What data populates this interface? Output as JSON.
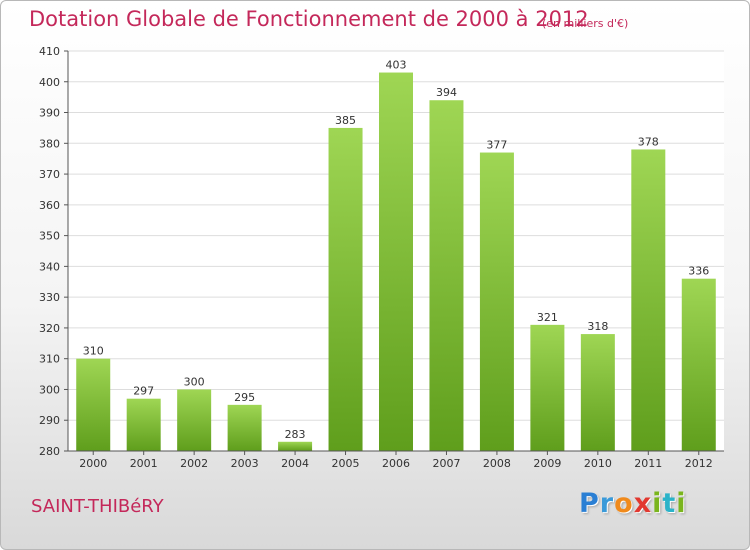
{
  "header": {
    "title": "Dotation Globale de Fonctionnement de 2000 à 2012",
    "unit": "(en milliers d'€)"
  },
  "footer": {
    "commune": "SAINT-THIBéRY",
    "logo_letters": [
      {
        "ch": "P",
        "color": "#2a7fd4"
      },
      {
        "ch": "r",
        "color": "#3a9ad9"
      },
      {
        "ch": "o",
        "color": "#f08a1c"
      },
      {
        "ch": "x",
        "color": "#e2382f"
      },
      {
        "ch": "i",
        "color": "#7ab51d"
      },
      {
        "ch": "t",
        "color": "#2bb3c9"
      },
      {
        "ch": "i",
        "color": "#7ab51d"
      }
    ]
  },
  "colors": {
    "bar_light": "#9fd654",
    "bar_dark": "#5f9e1c",
    "title": "#c4285a",
    "grid": "#dddddd",
    "axis": "#555555"
  },
  "chart_data": {
    "type": "bar",
    "title": "Dotation Globale de Fonctionnement de 2000 à 2012",
    "subtitle": "(en milliers d'€)",
    "categories": [
      "2000",
      "2001",
      "2002",
      "2003",
      "2004",
      "2005",
      "2006",
      "2007",
      "2008",
      "2009",
      "2010",
      "2011",
      "2012"
    ],
    "values": [
      310,
      297,
      300,
      295,
      283,
      385,
      403,
      394,
      377,
      321,
      318,
      378,
      336
    ],
    "ylim": [
      280,
      410
    ],
    "yticks": [
      280,
      290,
      300,
      310,
      320,
      330,
      340,
      350,
      360,
      370,
      380,
      390,
      400,
      410
    ],
    "grid": true,
    "xlabel": "",
    "ylabel": ""
  }
}
